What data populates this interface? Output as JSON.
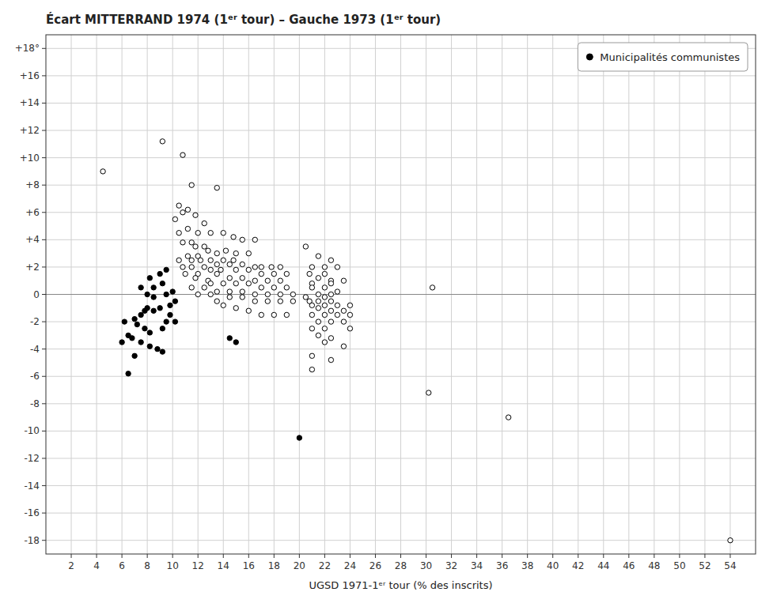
{
  "chart_data": {
    "type": "scatter",
    "title": "Écart MITTERRAND 1974 (1ᵉʳ tour) – Gauche 1973 (1ᵉʳ tour)",
    "x_label": "UGSD 1971-1ᵉʳ tour (% des inscrits)",
    "xlim": [
      0,
      56
    ],
    "ylim": [
      -19,
      19
    ],
    "xticks": [
      2,
      4,
      6,
      8,
      10,
      12,
      14,
      16,
      18,
      20,
      22,
      24,
      26,
      28,
      30,
      32,
      34,
      36,
      38,
      40,
      42,
      44,
      46,
      48,
      50,
      52,
      54
    ],
    "yticks": [
      -18,
      -16,
      -14,
      -12,
      -10,
      -8,
      -6,
      -4,
      -2,
      0,
      {
        "value": 2,
        "label": "+2"
      },
      {
        "value": 4,
        "label": "+4"
      },
      {
        "value": 6,
        "label": "+6"
      },
      {
        "value": 8,
        "label": "+8"
      },
      {
        "value": 10,
        "label": "+10"
      },
      {
        "value": 12,
        "label": "+12"
      },
      {
        "value": 14,
        "label": "+14"
      },
      {
        "value": 16,
        "label": "+16"
      },
      {
        "value": 18,
        "label": "+18°"
      }
    ],
    "grid": true,
    "legend": "upper right",
    "series": [
      {
        "color": "#000000",
        "marker": "circle-open",
        "x": [
          4.5,
          9.2,
          10.8,
          11.5,
          13.5,
          10.5,
          11.2,
          10.8,
          11.8,
          10.2,
          12.5,
          10.5,
          11.2,
          12.0,
          13.0,
          14.0,
          14.8,
          15.5,
          16.5,
          10.8,
          11.5,
          11.8,
          12.5,
          12.8,
          13.5,
          14.2,
          15.0,
          16.0,
          11.2,
          12.0,
          10.5,
          11.5,
          12.2,
          13.0,
          14.0,
          14.8,
          13.5,
          14.5,
          15.5,
          16.5,
          17.0,
          17.8,
          18.5,
          10.8,
          11.5,
          12.5,
          13.0,
          13.8,
          15.0,
          16.0,
          17.0,
          18.0,
          19.0,
          11.0,
          12.0,
          13.5,
          14.5,
          15.5,
          16.5,
          17.5,
          18.5,
          11.8,
          12.8,
          13.0,
          14.0,
          15.0,
          16.0,
          17.0,
          18.0,
          19.0,
          11.5,
          12.5,
          13.5,
          14.5,
          15.5,
          16.5,
          17.5,
          18.5,
          19.5,
          12.0,
          13.0,
          14.5,
          15.5,
          16.5,
          17.5,
          18.5,
          19.5,
          13.5,
          14.0,
          15.0,
          16.0,
          17.0,
          18.0,
          19.0,
          20.5,
          21.5,
          22.5,
          21.0,
          22.0,
          23.0,
          20.8,
          22.0,
          21.5,
          22.5,
          23.5,
          21.0,
          22.5,
          21.0,
          22.0,
          23.0,
          21.5,
          22.5,
          20.5,
          22.0,
          20.8,
          21.5,
          22.5,
          21.0,
          22.0,
          23.0,
          24.0,
          21.5,
          22.5,
          23.5,
          21.0,
          22.0,
          23.0,
          24.0,
          21.5,
          22.5,
          23.5,
          21.0,
          22.0,
          24.0,
          21.5,
          22.5,
          22.0,
          23.5,
          21.0,
          22.5,
          21.0,
          30.5,
          30.2,
          36.5,
          54.0
        ],
        "values": [
          9.0,
          11.2,
          10.2,
          8.0,
          7.8,
          6.5,
          6.2,
          6.0,
          5.8,
          5.5,
          5.2,
          4.5,
          4.8,
          4.5,
          4.5,
          4.5,
          4.2,
          4.0,
          4.0,
          3.8,
          3.8,
          3.5,
          3.5,
          3.2,
          3.0,
          3.2,
          3.0,
          3.0,
          2.8,
          2.8,
          2.5,
          2.5,
          2.5,
          2.5,
          2.5,
          2.5,
          2.2,
          2.2,
          2.2,
          2.0,
          2.0,
          2.0,
          2.0,
          2.0,
          2.0,
          2.0,
          1.8,
          1.8,
          1.8,
          1.8,
          1.5,
          1.5,
          1.5,
          1.5,
          1.5,
          1.5,
          1.2,
          1.2,
          1.0,
          1.0,
          1.0,
          1.2,
          1.0,
          0.8,
          0.8,
          0.8,
          0.8,
          0.5,
          0.5,
          0.5,
          0.5,
          0.5,
          0.2,
          0.2,
          0.2,
          0.0,
          0.0,
          0.0,
          0.0,
          0.0,
          0.0,
          -0.2,
          -0.2,
          -0.5,
          -0.5,
          -0.5,
          -0.5,
          -0.5,
          -0.8,
          -1.0,
          -1.2,
          -1.5,
          -1.5,
          -1.5,
          3.5,
          2.8,
          2.5,
          2.0,
          2.0,
          2.0,
          1.5,
          1.5,
          1.2,
          1.0,
          1.0,
          0.8,
          0.8,
          0.5,
          0.5,
          0.2,
          0.0,
          0.0,
          -0.2,
          -0.2,
          -0.5,
          -0.5,
          -0.5,
          -0.8,
          -0.8,
          -0.8,
          -0.8,
          -1.0,
          -1.2,
          -1.2,
          -1.5,
          -1.5,
          -1.5,
          -1.5,
          -2.0,
          -2.0,
          -2.0,
          -2.5,
          -2.5,
          -2.5,
          -3.0,
          -3.2,
          -3.5,
          -3.8,
          -4.5,
          -4.8,
          -5.5,
          0.5,
          -7.2,
          -9.0,
          -18.0
        ]
      },
      {
        "name": "Municipalités communistes",
        "color": "#000000",
        "marker": "circle",
        "x": [
          6.5,
          6.0,
          6.5,
          6.2,
          7.0,
          7.0,
          7.5,
          7.8,
          8.0,
          8.5,
          9.0,
          7.2,
          7.8,
          8.2,
          6.8,
          7.5,
          8.2,
          8.8,
          9.2,
          9.5,
          9.2,
          9.8,
          8.5,
          9.0,
          9.5,
          9.5,
          10.0,
          8.0,
          7.5,
          8.2,
          9.2,
          10.2,
          9.8,
          8.5,
          10.2,
          14.5,
          15.0,
          20.0
        ],
        "values": [
          -5.8,
          -3.5,
          -3.0,
          -2.0,
          -4.5,
          -1.8,
          -1.5,
          -1.2,
          -1.0,
          -1.2,
          -1.0,
          -2.2,
          -2.5,
          -2.8,
          -3.2,
          -3.5,
          -3.8,
          -4.0,
          -4.2,
          -2.0,
          -2.5,
          -1.5,
          0.5,
          1.5,
          1.8,
          0.0,
          0.2,
          0.0,
          0.5,
          1.2,
          0.8,
          -0.5,
          -0.8,
          -0.2,
          -2.0,
          -3.2,
          -3.5,
          -10.5
        ]
      }
    ]
  }
}
